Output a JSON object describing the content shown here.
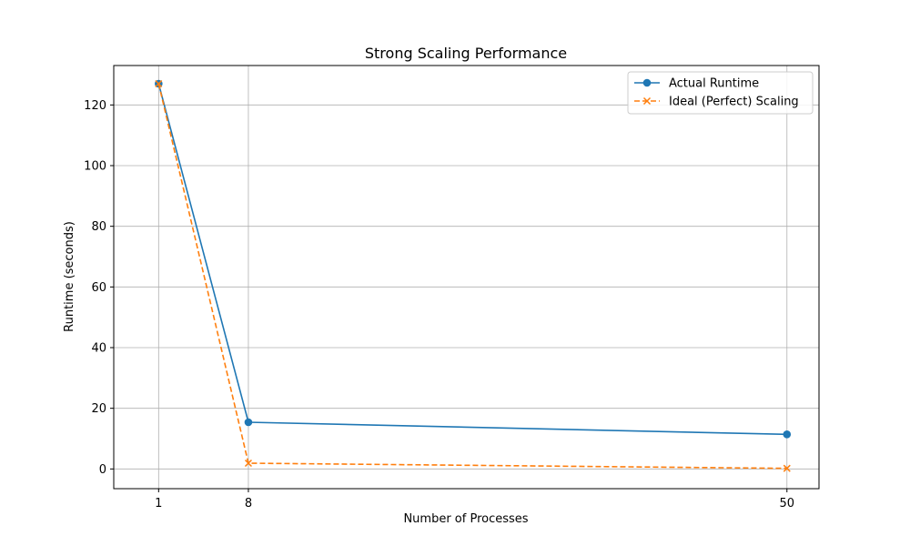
{
  "chart_data": {
    "type": "line",
    "title": "Strong Scaling Performance",
    "xlabel": "Number of Processes",
    "ylabel": "Runtime (seconds)",
    "x": [
      1,
      8,
      50
    ],
    "x_ticks": [
      "1",
      "8",
      "50"
    ],
    "xlim": [
      -2.5,
      52.5
    ],
    "ylim": [
      -6.5,
      133.0
    ],
    "y_ticks": [
      0,
      20,
      40,
      60,
      80,
      100,
      120
    ],
    "grid": true,
    "legend_position": "top-right",
    "series": [
      {
        "name": "Actual Runtime",
        "values": [
          127.0,
          15.4,
          11.4
        ],
        "color": "#1f77b4",
        "line_style": "solid",
        "marker": "circle"
      },
      {
        "name": "Ideal (Perfect) Scaling",
        "values": [
          127.0,
          1.9,
          0.2
        ],
        "color": "#ff7f0e",
        "line_style": "dashed",
        "marker": "x"
      }
    ]
  }
}
